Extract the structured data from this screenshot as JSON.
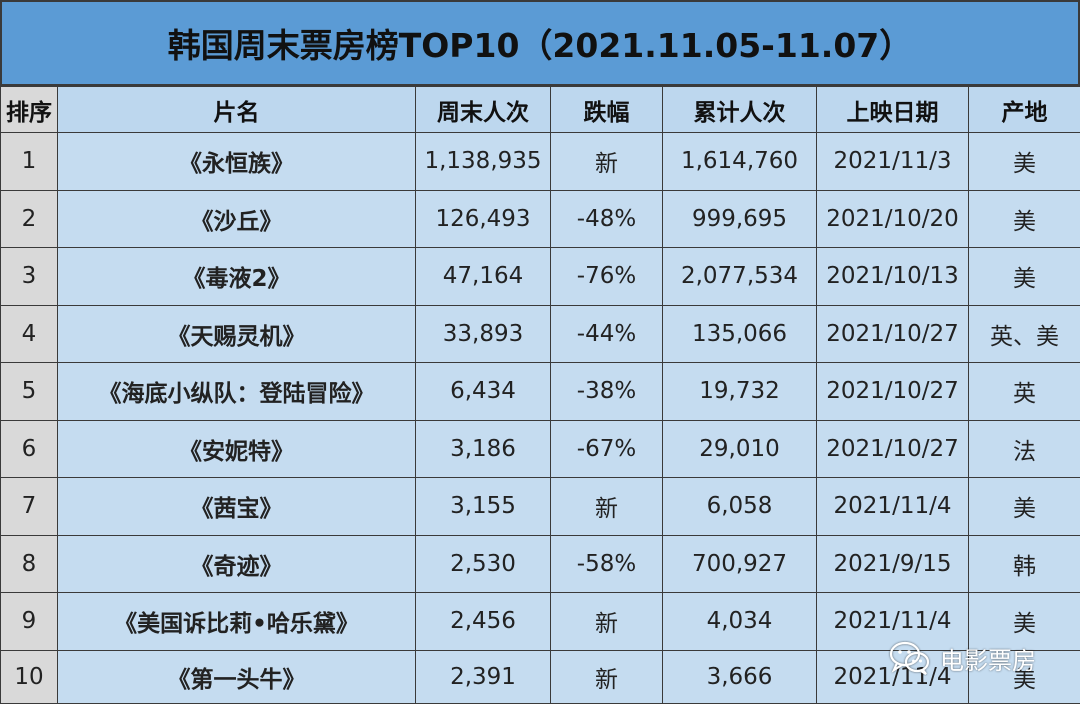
{
  "title": "韩国周末票房榜TOP10（2021.11.05-11.07）",
  "headers": [
    "排序",
    "片名",
    "周末人次",
    "跌幅",
    "累计人次",
    "上映日期",
    "产地"
  ],
  "rows": [
    {
      "rank": "1",
      "film": "《永恒族》",
      "weekend": "1,138,935",
      "change": "新",
      "total": "1,614,760",
      "release": "2021/11/3",
      "origin": "美"
    },
    {
      "rank": "2",
      "film": "《沙丘》",
      "weekend": "126,493",
      "change": "-48%",
      "total": "999,695",
      "release": "2021/10/20",
      "origin": "美"
    },
    {
      "rank": "3",
      "film": "《毒液2》",
      "weekend": "47,164",
      "change": "-76%",
      "total": "2,077,534",
      "release": "2021/10/13",
      "origin": "美"
    },
    {
      "rank": "4",
      "film": "《天赐灵机》",
      "weekend": "33,893",
      "change": "-44%",
      "total": "135,066",
      "release": "2021/10/27",
      "origin": "英、美"
    },
    {
      "rank": "5",
      "film": "《海底小纵队：登陆冒险》",
      "weekend": "6,434",
      "change": "-38%",
      "total": "19,732",
      "release": "2021/10/27",
      "origin": "英"
    },
    {
      "rank": "6",
      "film": "《安妮特》",
      "weekend": "3,186",
      "change": "-67%",
      "total": "29,010",
      "release": "2021/10/27",
      "origin": "法"
    },
    {
      "rank": "7",
      "film": "《茜宝》",
      "weekend": "3,155",
      "change": "新",
      "total": "6,058",
      "release": "2021/11/4",
      "origin": "美"
    },
    {
      "rank": "8",
      "film": "《奇迹》",
      "weekend": "2,530",
      "change": "-58%",
      "total": "700,927",
      "release": "2021/9/15",
      "origin": "韩"
    },
    {
      "rank": "9",
      "film": "《美国诉比莉•哈乐黛》",
      "weekend": "2,456",
      "change": "新",
      "total": "4,034",
      "release": "2021/11/4",
      "origin": "美"
    },
    {
      "rank": "10",
      "film": "《第一头牛》",
      "weekend": "2,391",
      "change": "新",
      "total": "3,666",
      "release": "2021/11/4",
      "origin": "美"
    }
  ],
  "watermark": {
    "text": "电影票房",
    "icon": "wechat-icon"
  },
  "colors": {
    "title_bg": "#5b9bd5",
    "header_bg": "#bdd7ee",
    "row_bg": "#c5dcf0",
    "rank_bg": "#d9d9d9"
  }
}
